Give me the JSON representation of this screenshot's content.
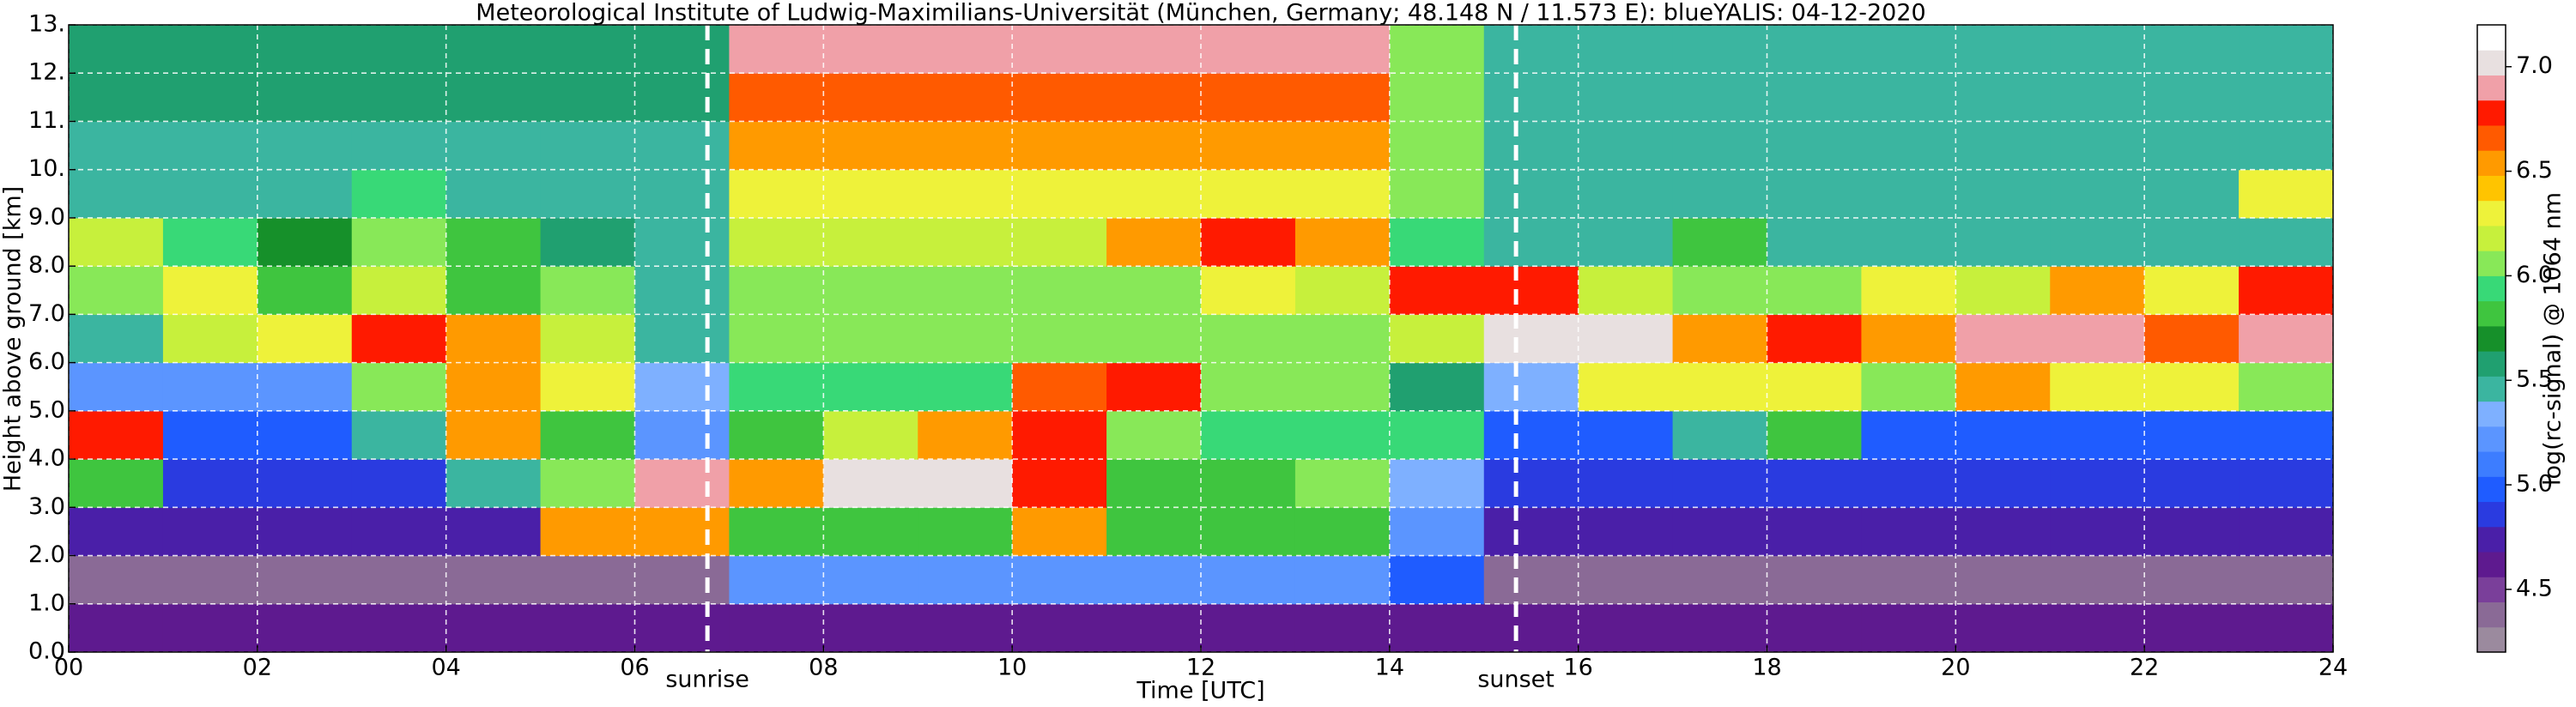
{
  "chart_data": {
    "type": "heatmap",
    "title": "Meteorological Institute of Ludwig-Maximilians-Universität (München, Germany; 48.148 N / 11.573 E):    blueYALIS: 04-12-2020",
    "xlabel": "Time [UTC]",
    "ylabel": "Height above ground [km]",
    "colorbar_label": "log(rc-signal) @ 1064 nm",
    "xbins": [
      0,
      1,
      2,
      3,
      4,
      5,
      6,
      7,
      8,
      9,
      10,
      11,
      12,
      13,
      14,
      15,
      16,
      17,
      18,
      19,
      20,
      21,
      22,
      23,
      24
    ],
    "ybins": [
      0,
      1,
      2,
      3,
      4,
      5,
      6,
      7,
      8,
      9,
      10,
      11,
      12,
      13
    ],
    "values": [
      [
        4.6,
        4.6,
        4.6,
        4.6,
        4.6,
        4.6,
        4.6,
        4.6,
        4.6,
        4.6,
        4.6,
        4.6,
        4.6,
        4.6,
        4.6,
        4.6,
        4.6,
        4.6,
        4.6,
        4.6,
        4.6,
        4.6,
        4.6,
        4.6
      ],
      [
        4.4,
        4.4,
        4.4,
        4.4,
        4.4,
        4.4,
        4.4,
        5.2,
        5.2,
        5.2,
        5.2,
        5.2,
        5.2,
        5.2,
        5.0,
        4.4,
        4.4,
        4.4,
        4.4,
        4.4,
        4.4,
        4.4,
        4.4,
        4.4
      ],
      [
        4.8,
        4.8,
        4.8,
        4.8,
        4.8,
        6.5,
        6.5,
        5.8,
        5.8,
        5.8,
        6.5,
        5.8,
        5.8,
        5.8,
        5.2,
        4.8,
        4.8,
        4.8,
        4.8,
        4.8,
        4.8,
        4.8,
        4.8,
        4.8
      ],
      [
        5.8,
        4.9,
        4.9,
        4.9,
        5.5,
        6.0,
        6.9,
        6.5,
        7.0,
        7.0,
        6.8,
        5.8,
        5.8,
        6.0,
        5.3,
        4.9,
        4.9,
        4.9,
        4.9,
        4.9,
        4.9,
        4.9,
        4.9,
        4.9
      ],
      [
        6.8,
        5.0,
        5.0,
        5.5,
        6.5,
        5.8,
        5.2,
        5.8,
        6.2,
        6.5,
        6.8,
        6.0,
        5.9,
        5.9,
        5.9,
        5.0,
        5.0,
        5.5,
        5.8,
        5.0,
        5.0,
        5.0,
        5.0,
        5.0
      ],
      [
        5.2,
        5.2,
        5.2,
        6.0,
        6.6,
        6.3,
        5.3,
        5.9,
        5.9,
        5.9,
        6.7,
        6.8,
        6.0,
        6.0,
        5.6,
        5.3,
        6.3,
        6.3,
        6.3,
        6.0,
        6.5,
        6.3,
        6.3,
        6.0
      ],
      [
        5.5,
        6.2,
        6.3,
        6.8,
        6.5,
        6.2,
        5.4,
        6.0,
        6.0,
        6.0,
        6.0,
        6.1,
        6.1,
        6.1,
        6.2,
        7.0,
        7.0,
        6.6,
        6.8,
        6.5,
        6.9,
        6.9,
        6.7,
        6.9
      ],
      [
        6.0,
        6.3,
        5.8,
        6.2,
        5.8,
        6.0,
        5.5,
        6.1,
        6.1,
        6.1,
        6.1,
        6.1,
        6.3,
        6.2,
        6.8,
        6.8,
        6.2,
        6.0,
        6.0,
        6.3,
        6.2,
        6.5,
        6.3,
        6.8
      ],
      [
        6.2,
        5.9,
        5.7,
        6.0,
        5.8,
        5.6,
        5.4,
        6.2,
        6.2,
        6.2,
        6.2,
        6.5,
        6.8,
        6.6,
        5.9,
        5.5,
        5.5,
        5.8,
        5.5,
        5.5,
        5.5,
        5.5,
        5.5,
        5.5
      ],
      [
        5.5,
        5.5,
        5.5,
        5.9,
        5.5,
        5.5,
        5.5,
        6.3,
        6.3,
        6.3,
        6.3,
        6.3,
        6.3,
        6.3,
        6.0,
        5.4,
        5.4,
        5.4,
        5.4,
        5.4,
        5.4,
        5.4,
        5.4,
        6.3
      ],
      [
        5.5,
        5.5,
        5.5,
        5.5,
        5.5,
        5.5,
        5.5,
        6.5,
        6.5,
        6.5,
        6.5,
        6.5,
        6.5,
        6.5,
        6.0,
        5.4,
        5.4,
        5.4,
        5.4,
        5.4,
        5.4,
        5.4,
        5.4,
        5.4
      ],
      [
        5.6,
        5.6,
        5.6,
        5.6,
        5.6,
        5.6,
        5.6,
        6.7,
        6.7,
        6.7,
        6.7,
        6.7,
        6.7,
        6.7,
        6.1,
        5.4,
        5.4,
        5.4,
        5.4,
        5.4,
        5.4,
        5.4,
        5.4,
        5.4
      ],
      [
        5.6,
        5.6,
        5.6,
        5.6,
        5.6,
        5.6,
        5.6,
        6.9,
        6.9,
        6.9,
        6.9,
        6.9,
        6.9,
        6.9,
        6.1,
        5.5,
        5.5,
        5.5,
        5.5,
        5.5,
        5.5,
        5.5,
        5.5,
        5.5
      ]
    ],
    "xlim": [
      0,
      24
    ],
    "ylim": [
      0,
      13
    ],
    "clim": [
      4.2,
      7.2
    ],
    "xticks": [
      {
        "value": 0,
        "label": "00"
      },
      {
        "value": 2,
        "label": "02"
      },
      {
        "value": 4,
        "label": "04"
      },
      {
        "value": 6,
        "label": "06"
      },
      {
        "value": 8,
        "label": "08"
      },
      {
        "value": 10,
        "label": "10"
      },
      {
        "value": 12,
        "label": "12"
      },
      {
        "value": 14,
        "label": "14"
      },
      {
        "value": 16,
        "label": "16"
      },
      {
        "value": 18,
        "label": "18"
      },
      {
        "value": 20,
        "label": "20"
      },
      {
        "value": 22,
        "label": "22"
      },
      {
        "value": 24,
        "label": "24"
      }
    ],
    "yticks": [
      {
        "value": 0,
        "label": "0.0"
      },
      {
        "value": 1,
        "label": "1.0"
      },
      {
        "value": 2,
        "label": "2.0"
      },
      {
        "value": 3,
        "label": "3.0"
      },
      {
        "value": 4,
        "label": "4.0"
      },
      {
        "value": 5,
        "label": "5.0"
      },
      {
        "value": 6,
        "label": "6.0"
      },
      {
        "value": 7,
        "label": "7.0"
      },
      {
        "value": 8,
        "label": "8.0"
      },
      {
        "value": 9,
        "label": "9.0"
      },
      {
        "value": 10,
        "label": "10."
      },
      {
        "value": 11,
        "label": "11."
      },
      {
        "value": 12,
        "label": "12."
      },
      {
        "value": 13,
        "label": "13."
      }
    ],
    "cticks": [
      4.5,
      {
        "value": 5,
        "label": "5.0"
      },
      5.5,
      {
        "value": 6,
        "label": "6.0"
      },
      6.5,
      {
        "value": 7,
        "label": "7.0"
      }
    ],
    "colormap": [
      "#9b8a9e",
      "#8a6a96",
      "#7a3f9a",
      "#5e1a8f",
      "#4a1fa8",
      "#2a3be0",
      "#1f5cff",
      "#3d7dff",
      "#5b95ff",
      "#7eb0ff",
      "#3bb5a0",
      "#20a070",
      "#16902a",
      "#3fc53f",
      "#38d977",
      "#88e858",
      "#c7f03c",
      "#eef23a",
      "#ffc400",
      "#ff9a00",
      "#ff5a00",
      "#ff1a00",
      "#f0a0a8",
      "#e8e0e0",
      "#ffffff"
    ],
    "grid": true,
    "annotations": [
      {
        "text": "sunrise",
        "x": 6.77
      },
      {
        "text": "sunset",
        "x": 15.34
      }
    ]
  }
}
